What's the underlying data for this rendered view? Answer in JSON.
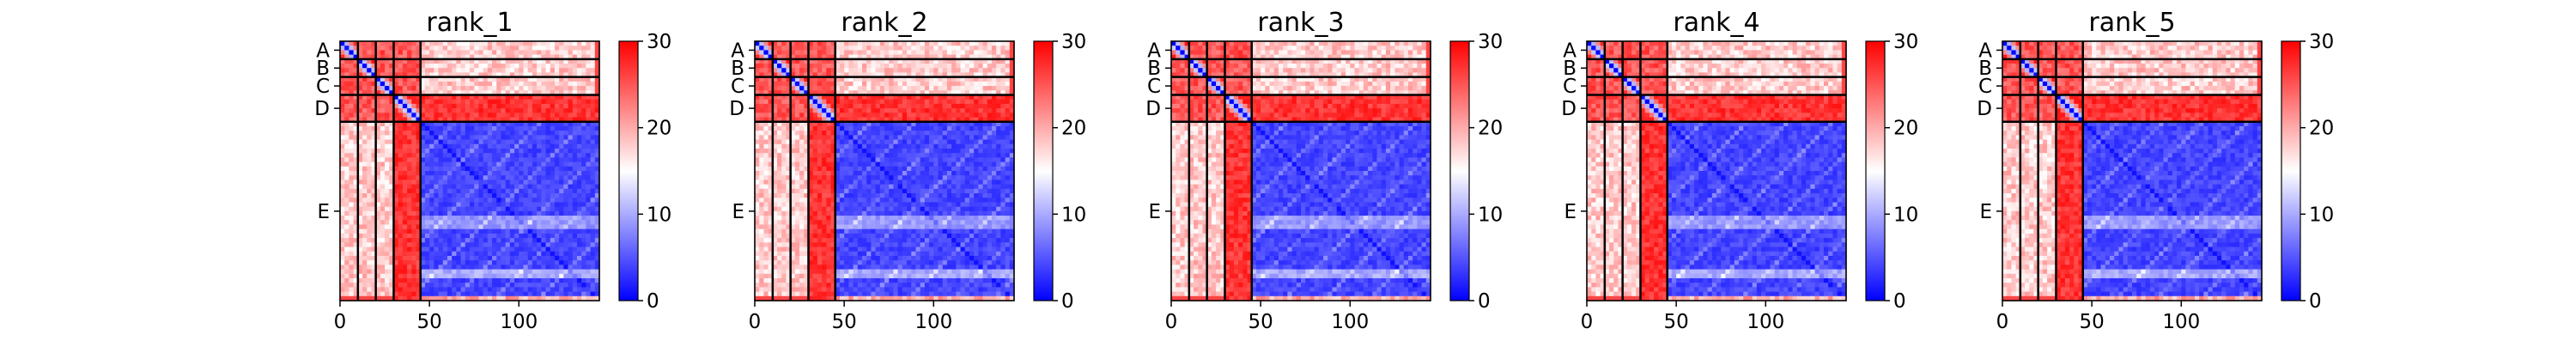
{
  "figure": {
    "panels": [
      "rank_1",
      "rank_2",
      "rank_3",
      "rank_4",
      "rank_5"
    ]
  },
  "colors": {
    "low": "#0000ff",
    "mid": "#ffffff",
    "high": "#ff0000",
    "boundary": "#000000"
  },
  "chart_data": [
    {
      "type": "heatmap",
      "title": "rank_1",
      "colormap": "bwr",
      "matrix_size": 145,
      "chains": [
        "A",
        "B",
        "C",
        "D",
        "E"
      ],
      "chain_boundaries": [
        0,
        10,
        20,
        30,
        45,
        145
      ],
      "x_ticks": [
        0,
        50,
        100
      ],
      "y_tick_labels": [
        "A",
        "B",
        "C",
        "D",
        "E"
      ],
      "colorbar": {
        "range": [
          0,
          30
        ],
        "ticks": [
          0,
          10,
          20,
          30
        ]
      },
      "grid": false
    },
    {
      "type": "heatmap",
      "title": "rank_2",
      "colormap": "bwr",
      "matrix_size": 145,
      "chains": [
        "A",
        "B",
        "C",
        "D",
        "E"
      ],
      "chain_boundaries": [
        0,
        10,
        20,
        30,
        45,
        145
      ],
      "x_ticks": [
        0,
        50,
        100
      ],
      "y_tick_labels": [
        "A",
        "B",
        "C",
        "D",
        "E"
      ],
      "colorbar": {
        "range": [
          0,
          30
        ],
        "ticks": [
          0,
          10,
          20,
          30
        ]
      },
      "grid": false
    },
    {
      "type": "heatmap",
      "title": "rank_3",
      "colormap": "bwr",
      "matrix_size": 145,
      "chains": [
        "A",
        "B",
        "C",
        "D",
        "E"
      ],
      "chain_boundaries": [
        0,
        10,
        20,
        30,
        45,
        145
      ],
      "x_ticks": [
        0,
        50,
        100
      ],
      "y_tick_labels": [
        "A",
        "B",
        "C",
        "D",
        "E"
      ],
      "colorbar": {
        "range": [
          0,
          30
        ],
        "ticks": [
          0,
          10,
          20,
          30
        ]
      },
      "grid": false
    },
    {
      "type": "heatmap",
      "title": "rank_4",
      "colormap": "bwr",
      "matrix_size": 145,
      "chains": [
        "A",
        "B",
        "C",
        "D",
        "E"
      ],
      "chain_boundaries": [
        0,
        10,
        20,
        30,
        45,
        145
      ],
      "x_ticks": [
        0,
        50,
        100
      ],
      "y_tick_labels": [
        "A",
        "B",
        "C",
        "D",
        "E"
      ],
      "colorbar": {
        "range": [
          0,
          30
        ],
        "ticks": [
          0,
          10,
          20,
          30
        ]
      },
      "grid": false
    },
    {
      "type": "heatmap",
      "title": "rank_5",
      "colormap": "bwr",
      "matrix_size": 145,
      "chains": [
        "A",
        "B",
        "C",
        "D",
        "E"
      ],
      "chain_boundaries": [
        0,
        10,
        20,
        30,
        45,
        145
      ],
      "x_ticks": [
        0,
        50,
        100
      ],
      "y_tick_labels": [
        "A",
        "B",
        "C",
        "D",
        "E"
      ],
      "colorbar": {
        "range": [
          0,
          30
        ],
        "ticks": [
          0,
          10,
          20,
          30
        ]
      },
      "grid": false
    }
  ]
}
